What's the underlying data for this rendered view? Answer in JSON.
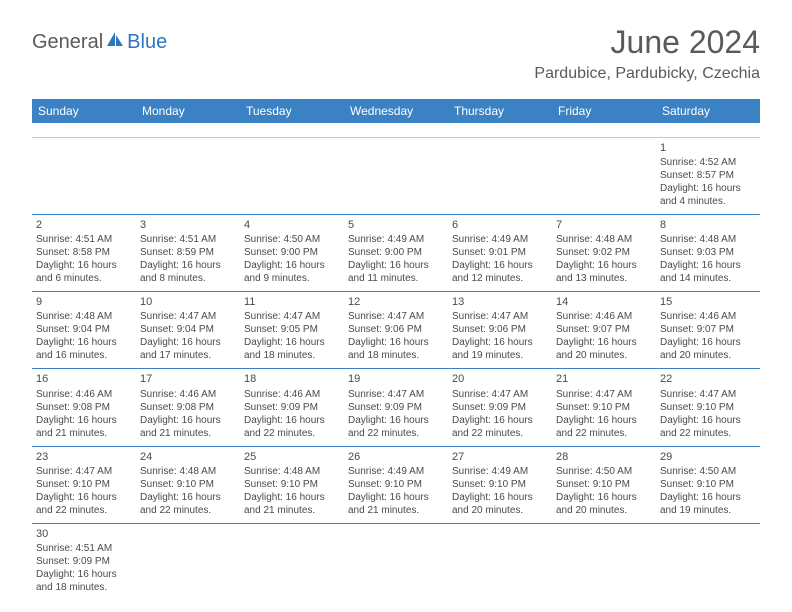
{
  "logo": {
    "part1": "General",
    "part2": "Blue"
  },
  "title": "June 2024",
  "location": "Pardubice, Pardubicky, Czechia",
  "colors": {
    "header_bg": "#3b82c4",
    "header_text": "#ffffff",
    "row_border": "#3b82c4",
    "text": "#4a4a4a",
    "title_text": "#5a5a5a",
    "logo_blue": "#2e75c0"
  },
  "weekdays": [
    "Sunday",
    "Monday",
    "Tuesday",
    "Wednesday",
    "Thursday",
    "Friday",
    "Saturday"
  ],
  "weeks": [
    [
      null,
      null,
      null,
      null,
      null,
      null,
      {
        "n": "1",
        "sr": "Sunrise: 4:52 AM",
        "ss": "Sunset: 8:57 PM",
        "d1": "Daylight: 16 hours",
        "d2": "and 4 minutes."
      }
    ],
    [
      {
        "n": "2",
        "sr": "Sunrise: 4:51 AM",
        "ss": "Sunset: 8:58 PM",
        "d1": "Daylight: 16 hours",
        "d2": "and 6 minutes."
      },
      {
        "n": "3",
        "sr": "Sunrise: 4:51 AM",
        "ss": "Sunset: 8:59 PM",
        "d1": "Daylight: 16 hours",
        "d2": "and 8 minutes."
      },
      {
        "n": "4",
        "sr": "Sunrise: 4:50 AM",
        "ss": "Sunset: 9:00 PM",
        "d1": "Daylight: 16 hours",
        "d2": "and 9 minutes."
      },
      {
        "n": "5",
        "sr": "Sunrise: 4:49 AM",
        "ss": "Sunset: 9:00 PM",
        "d1": "Daylight: 16 hours",
        "d2": "and 11 minutes."
      },
      {
        "n": "6",
        "sr": "Sunrise: 4:49 AM",
        "ss": "Sunset: 9:01 PM",
        "d1": "Daylight: 16 hours",
        "d2": "and 12 minutes."
      },
      {
        "n": "7",
        "sr": "Sunrise: 4:48 AM",
        "ss": "Sunset: 9:02 PM",
        "d1": "Daylight: 16 hours",
        "d2": "and 13 minutes."
      },
      {
        "n": "8",
        "sr": "Sunrise: 4:48 AM",
        "ss": "Sunset: 9:03 PM",
        "d1": "Daylight: 16 hours",
        "d2": "and 14 minutes."
      }
    ],
    [
      {
        "n": "9",
        "sr": "Sunrise: 4:48 AM",
        "ss": "Sunset: 9:04 PM",
        "d1": "Daylight: 16 hours",
        "d2": "and 16 minutes."
      },
      {
        "n": "10",
        "sr": "Sunrise: 4:47 AM",
        "ss": "Sunset: 9:04 PM",
        "d1": "Daylight: 16 hours",
        "d2": "and 17 minutes."
      },
      {
        "n": "11",
        "sr": "Sunrise: 4:47 AM",
        "ss": "Sunset: 9:05 PM",
        "d1": "Daylight: 16 hours",
        "d2": "and 18 minutes."
      },
      {
        "n": "12",
        "sr": "Sunrise: 4:47 AM",
        "ss": "Sunset: 9:06 PM",
        "d1": "Daylight: 16 hours",
        "d2": "and 18 minutes."
      },
      {
        "n": "13",
        "sr": "Sunrise: 4:47 AM",
        "ss": "Sunset: 9:06 PM",
        "d1": "Daylight: 16 hours",
        "d2": "and 19 minutes."
      },
      {
        "n": "14",
        "sr": "Sunrise: 4:46 AM",
        "ss": "Sunset: 9:07 PM",
        "d1": "Daylight: 16 hours",
        "d2": "and 20 minutes."
      },
      {
        "n": "15",
        "sr": "Sunrise: 4:46 AM",
        "ss": "Sunset: 9:07 PM",
        "d1": "Daylight: 16 hours",
        "d2": "and 20 minutes."
      }
    ],
    [
      {
        "n": "16",
        "sr": "Sunrise: 4:46 AM",
        "ss": "Sunset: 9:08 PM",
        "d1": "Daylight: 16 hours",
        "d2": "and 21 minutes."
      },
      {
        "n": "17",
        "sr": "Sunrise: 4:46 AM",
        "ss": "Sunset: 9:08 PM",
        "d1": "Daylight: 16 hours",
        "d2": "and 21 minutes."
      },
      {
        "n": "18",
        "sr": "Sunrise: 4:46 AM",
        "ss": "Sunset: 9:09 PM",
        "d1": "Daylight: 16 hours",
        "d2": "and 22 minutes."
      },
      {
        "n": "19",
        "sr": "Sunrise: 4:47 AM",
        "ss": "Sunset: 9:09 PM",
        "d1": "Daylight: 16 hours",
        "d2": "and 22 minutes."
      },
      {
        "n": "20",
        "sr": "Sunrise: 4:47 AM",
        "ss": "Sunset: 9:09 PM",
        "d1": "Daylight: 16 hours",
        "d2": "and 22 minutes."
      },
      {
        "n": "21",
        "sr": "Sunrise: 4:47 AM",
        "ss": "Sunset: 9:10 PM",
        "d1": "Daylight: 16 hours",
        "d2": "and 22 minutes."
      },
      {
        "n": "22",
        "sr": "Sunrise: 4:47 AM",
        "ss": "Sunset: 9:10 PM",
        "d1": "Daylight: 16 hours",
        "d2": "and 22 minutes."
      }
    ],
    [
      {
        "n": "23",
        "sr": "Sunrise: 4:47 AM",
        "ss": "Sunset: 9:10 PM",
        "d1": "Daylight: 16 hours",
        "d2": "and 22 minutes."
      },
      {
        "n": "24",
        "sr": "Sunrise: 4:48 AM",
        "ss": "Sunset: 9:10 PM",
        "d1": "Daylight: 16 hours",
        "d2": "and 22 minutes."
      },
      {
        "n": "25",
        "sr": "Sunrise: 4:48 AM",
        "ss": "Sunset: 9:10 PM",
        "d1": "Daylight: 16 hours",
        "d2": "and 21 minutes."
      },
      {
        "n": "26",
        "sr": "Sunrise: 4:49 AM",
        "ss": "Sunset: 9:10 PM",
        "d1": "Daylight: 16 hours",
        "d2": "and 21 minutes."
      },
      {
        "n": "27",
        "sr": "Sunrise: 4:49 AM",
        "ss": "Sunset: 9:10 PM",
        "d1": "Daylight: 16 hours",
        "d2": "and 20 minutes."
      },
      {
        "n": "28",
        "sr": "Sunrise: 4:50 AM",
        "ss": "Sunset: 9:10 PM",
        "d1": "Daylight: 16 hours",
        "d2": "and 20 minutes."
      },
      {
        "n": "29",
        "sr": "Sunrise: 4:50 AM",
        "ss": "Sunset: 9:10 PM",
        "d1": "Daylight: 16 hours",
        "d2": "and 19 minutes."
      }
    ],
    [
      {
        "n": "30",
        "sr": "Sunrise: 4:51 AM",
        "ss": "Sunset: 9:09 PM",
        "d1": "Daylight: 16 hours",
        "d2": "and 18 minutes."
      },
      null,
      null,
      null,
      null,
      null,
      null
    ]
  ]
}
